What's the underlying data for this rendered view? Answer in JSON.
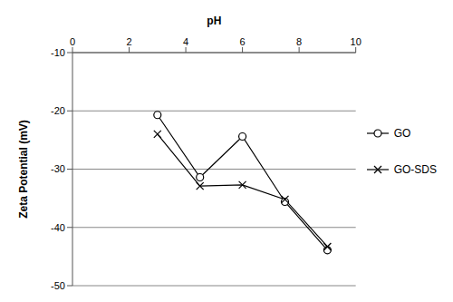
{
  "chart_data": {
    "type": "line",
    "x_label": "pH",
    "y_label": "Zeta Potential (mV)",
    "x": [
      3,
      4.5,
      6,
      7.5,
      9
    ],
    "xlim": [
      0,
      10
    ],
    "xticks": [
      0,
      2,
      4,
      6,
      8,
      10
    ],
    "ylim": [
      -50,
      -10
    ],
    "yticks": [
      -50,
      -40,
      -30,
      -20,
      -10
    ],
    "grid": true,
    "legend": "right",
    "series": [
      {
        "name": "GO",
        "color": "#000000",
        "marker": "circle",
        "values": [
          -20.7,
          -31.4,
          -24.4,
          -35.6,
          -43.9
        ]
      },
      {
        "name": "GO-SDS",
        "color": "#000000",
        "marker": "x",
        "values": [
          -24.0,
          -32.9,
          -32.7,
          -35.2,
          -43.3
        ]
      }
    ]
  }
}
